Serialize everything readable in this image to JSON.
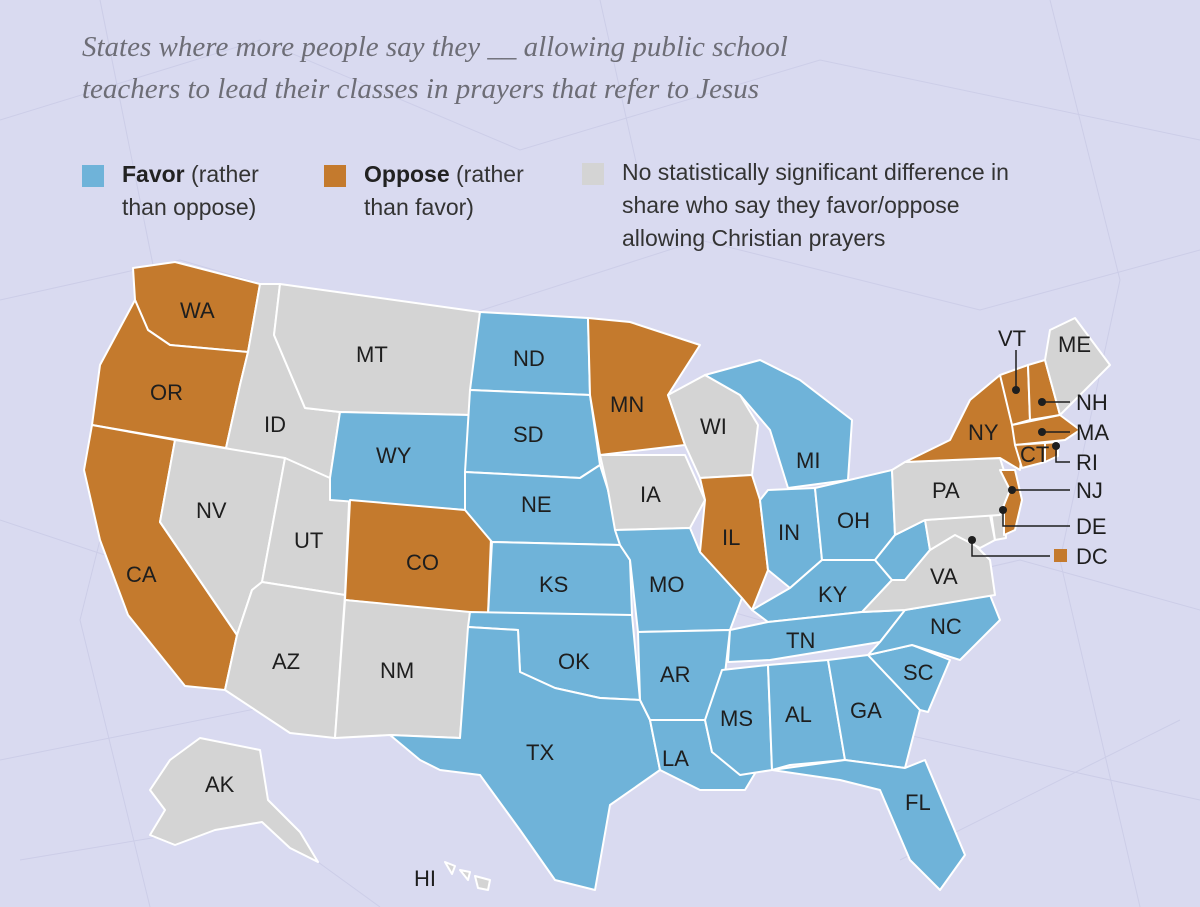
{
  "title": {
    "line1": "States where more people say they __ allowing public school",
    "line2": "teachers to lead their classes in prayers that refer to Jesus"
  },
  "legend": [
    {
      "key": "favor",
      "bold": "Favor",
      "rest1": " (rather",
      "rest2": "than oppose)",
      "color": "#6fb3d9"
    },
    {
      "key": "oppose",
      "bold": "Oppose",
      "rest1": " (rather",
      "rest2": "than favor)",
      "color": "#c47a2d"
    },
    {
      "key": "none",
      "line1": "No statistically significant difference in",
      "line2": "share who say they favor/oppose",
      "line3": "allowing Christian prayers",
      "color": "#d4d4d4"
    }
  ],
  "colors": {
    "favor": "#6fb3d9",
    "oppose": "#c47a2d",
    "none": "#d4d4d4"
  },
  "states": {
    "WA": "oppose",
    "OR": "oppose",
    "CA": "oppose",
    "CO": "oppose",
    "MN": "oppose",
    "IL": "oppose",
    "NY": "oppose",
    "VT": "oppose",
    "NH": "oppose",
    "MA": "oppose",
    "RI": "oppose",
    "CT": "oppose",
    "NJ": "oppose",
    "DC": "oppose",
    "ID": "none",
    "MT": "none",
    "NV": "none",
    "UT": "none",
    "AZ": "none",
    "NM": "none",
    "IA": "none",
    "WI": "none",
    "PA": "none",
    "VA": "none",
    "MD": "none",
    "DE": "none",
    "ME": "none",
    "AK": "none",
    "HI": "none",
    "WY": "favor",
    "ND": "favor",
    "SD": "favor",
    "NE": "favor",
    "KS": "favor",
    "OK": "favor",
    "TX": "favor",
    "MO": "favor",
    "AR": "favor",
    "LA": "favor",
    "MS": "favor",
    "AL": "favor",
    "GA": "favor",
    "FL": "favor",
    "SC": "favor",
    "NC": "favor",
    "TN": "favor",
    "KY": "favor",
    "IN": "favor",
    "OH": "favor",
    "MI": "favor",
    "WV": "favor"
  },
  "labels": {
    "WA": "WA",
    "OR": "OR",
    "CA": "CA",
    "ID": "ID",
    "MT": "MT",
    "NV": "NV",
    "UT": "UT",
    "AZ": "AZ",
    "WY": "WY",
    "CO": "CO",
    "NM": "NM",
    "ND": "ND",
    "SD": "SD",
    "NE": "NE",
    "KS": "KS",
    "OK": "OK",
    "TX": "TX",
    "MN": "MN",
    "IA": "IA",
    "MO": "MO",
    "AR": "AR",
    "LA": "LA",
    "WI": "WI",
    "IL": "IL",
    "MI": "MI",
    "IN": "IN",
    "OH": "OH",
    "KY": "KY",
    "TN": "TN",
    "MS": "MS",
    "AL": "AL",
    "GA": "GA",
    "FL": "FL",
    "SC": "SC",
    "NC": "NC",
    "VA": "VA",
    "PA": "PA",
    "NY": "NY",
    "CT": "CT",
    "ME": "ME",
    "AK": "AK",
    "HI": "HI",
    "VT": "VT",
    "NH": "NH",
    "MA": "MA",
    "RI": "RI",
    "NJ": "NJ",
    "DE": "DE",
    "DC": "DC"
  }
}
